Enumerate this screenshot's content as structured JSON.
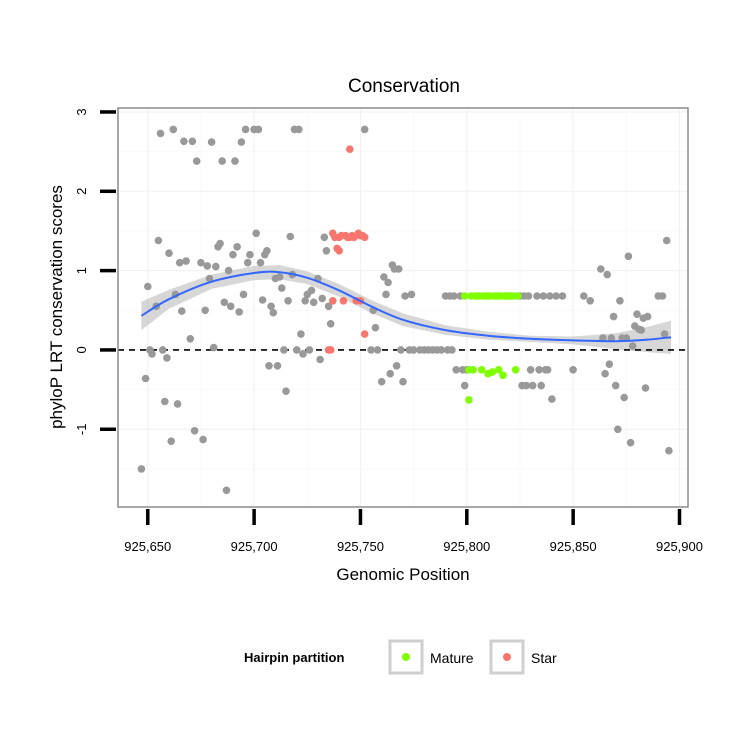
{
  "chart_data": {
    "type": "scatter",
    "title": "Conservation",
    "xlabel": "Genomic Position",
    "ylabel": "phyloP LRT conservation scores",
    "xlim": [
      925636,
      925904
    ],
    "ylim": [
      -1.98,
      3.05
    ],
    "x_ticks": [
      925650,
      925700,
      925750,
      925800,
      925850,
      925900
    ],
    "x_tick_labels": [
      "925,650",
      "925,700",
      "925,750",
      "925,800",
      "925,850",
      "925,900"
    ],
    "y_ticks": [
      -1,
      0,
      1,
      2,
      3
    ],
    "y_tick_labels": [
      "-1",
      "0",
      "1",
      "2",
      "3"
    ],
    "reference_line": {
      "y": 0,
      "style": "dashed"
    },
    "legend": {
      "title": "Hairpin partition",
      "position": "bottom",
      "entries": [
        {
          "label": "Mature",
          "color": "#7fff00"
        },
        {
          "label": "Star",
          "color": "#f8766d"
        }
      ]
    },
    "colors": {
      "other": "#999999",
      "Mature": "#7fff00",
      "Star": "#f8766d",
      "smooth": "#3366ff",
      "band": "#bdbdbd"
    },
    "smooth": {
      "x": [
        925647,
        925660,
        925680,
        925700,
        925712,
        925725,
        925740,
        925755,
        925770,
        925790,
        925810,
        925830,
        925850,
        925870,
        925885,
        925896
      ],
      "y": [
        0.43,
        0.64,
        0.86,
        0.97,
        0.98,
        0.91,
        0.75,
        0.55,
        0.38,
        0.25,
        0.18,
        0.14,
        0.12,
        0.11,
        0.13,
        0.16
      ],
      "lower": [
        0.25,
        0.52,
        0.77,
        0.88,
        0.89,
        0.83,
        0.67,
        0.47,
        0.3,
        0.19,
        0.13,
        0.1,
        0.07,
        0.01,
        -0.03,
        -0.05
      ],
      "upper": [
        0.61,
        0.76,
        0.95,
        1.06,
        1.07,
        0.99,
        0.83,
        0.63,
        0.46,
        0.31,
        0.23,
        0.18,
        0.17,
        0.21,
        0.29,
        0.37
      ]
    },
    "series": [
      {
        "name": "other",
        "points": [
          [
            925647,
            -1.5
          ],
          [
            925649,
            -0.36
          ],
          [
            925650,
            0.8
          ],
          [
            925651,
            0.0
          ],
          [
            925652,
            -0.05
          ],
          [
            925654,
            0.55
          ],
          [
            925655,
            1.38
          ],
          [
            925656,
            2.73
          ],
          [
            925657,
            0.0
          ],
          [
            925658,
            -0.65
          ],
          [
            925659,
            -0.1
          ],
          [
            925660,
            1.22
          ],
          [
            925661,
            -1.15
          ],
          [
            925662,
            2.78
          ],
          [
            925663,
            0.7
          ],
          [
            925664,
            -0.68
          ],
          [
            925665,
            1.1
          ],
          [
            925666,
            0.49
          ],
          [
            925667,
            2.63
          ],
          [
            925668,
            1.12
          ],
          [
            925670,
            0.14
          ],
          [
            925671,
            2.63
          ],
          [
            925672,
            -1.02
          ],
          [
            925673,
            2.38
          ],
          [
            925675,
            1.1
          ],
          [
            925676,
            -1.13
          ],
          [
            925677,
            0.5
          ],
          [
            925678,
            1.06
          ],
          [
            925679,
            0.9
          ],
          [
            925680,
            2.62
          ],
          [
            925681,
            0.03
          ],
          [
            925682,
            1.05
          ],
          [
            925683,
            1.3
          ],
          [
            925684,
            1.34
          ],
          [
            925685,
            2.38
          ],
          [
            925686,
            0.6
          ],
          [
            925687,
            -1.77
          ],
          [
            925688,
            1.0
          ],
          [
            925689,
            0.55
          ],
          [
            925690,
            1.2
          ],
          [
            925691,
            2.38
          ],
          [
            925692,
            1.3
          ],
          [
            925693,
            0.48
          ],
          [
            925694,
            2.62
          ],
          [
            925695,
            0.7
          ],
          [
            925696,
            2.78
          ],
          [
            925697,
            1.1
          ],
          [
            925698,
            1.2
          ],
          [
            925700,
            2.78
          ],
          [
            925701,
            1.47
          ],
          [
            925702,
            2.78
          ],
          [
            925703,
            1.1
          ],
          [
            925704,
            0.63
          ],
          [
            925705,
            1.2
          ],
          [
            925706,
            1.25
          ],
          [
            925707,
            -0.2
          ],
          [
            925708,
            0.55
          ],
          [
            925709,
            0.47
          ],
          [
            925710,
            0.9
          ],
          [
            925711,
            -0.2
          ],
          [
            925712,
            0.92
          ],
          [
            925713,
            0.78
          ],
          [
            925714,
            0.0
          ],
          [
            925715,
            -0.52
          ],
          [
            925716,
            0.62
          ],
          [
            925717,
            1.43
          ],
          [
            925718,
            0.95
          ],
          [
            925719,
            2.78
          ],
          [
            925720,
            0.0
          ],
          [
            925721,
            2.78
          ],
          [
            925722,
            0.2
          ],
          [
            925723,
            -0.05
          ],
          [
            925724,
            0.62
          ],
          [
            925725,
            0.7
          ],
          [
            925726,
            0.0
          ],
          [
            925727,
            0.75
          ],
          [
            925728,
            0.6
          ],
          [
            925730,
            0.9
          ],
          [
            925731,
            -0.12
          ],
          [
            925732,
            0.65
          ],
          [
            925733,
            1.42
          ],
          [
            925734,
            1.25
          ],
          [
            925735,
            0.55
          ],
          [
            925736,
            0.33
          ],
          [
            925752,
            2.78
          ],
          [
            925755,
            0.0
          ],
          [
            925756,
            0.5
          ],
          [
            925757,
            0.28
          ],
          [
            925758,
            0.0
          ],
          [
            925760,
            -0.4
          ],
          [
            925761,
            0.92
          ],
          [
            925762,
            0.7
          ],
          [
            925763,
            0.85
          ],
          [
            925764,
            -0.3
          ],
          [
            925765,
            1.07
          ],
          [
            925766,
            1.02
          ],
          [
            925767,
            -0.2
          ],
          [
            925768,
            1.02
          ],
          [
            925769,
            0.0
          ],
          [
            925770,
            -0.4
          ],
          [
            925771,
            0.68
          ],
          [
            925773,
            0.0
          ],
          [
            925774,
            0.7
          ],
          [
            925775,
            0.0
          ],
          [
            925778,
            0.0
          ],
          [
            925780,
            0.0
          ],
          [
            925782,
            0.0
          ],
          [
            925784,
            0.0
          ],
          [
            925786,
            0.0
          ],
          [
            925788,
            0.0
          ],
          [
            925790,
            0.68
          ],
          [
            925791,
            0.0
          ],
          [
            925792,
            0.68
          ],
          [
            925793,
            0.0
          ],
          [
            925794,
            0.68
          ],
          [
            925795,
            -0.25
          ],
          [
            925797,
            0.68
          ],
          [
            925798,
            -0.25
          ],
          [
            925799,
            -0.45
          ],
          [
            925800,
            -0.25
          ],
          [
            925825,
            0.68
          ],
          [
            925826,
            -0.45
          ],
          [
            925827,
            0.68
          ],
          [
            925828,
            -0.45
          ],
          [
            925829,
            0.68
          ],
          [
            925830,
            -0.25
          ],
          [
            925831,
            -0.45
          ],
          [
            925833,
            0.68
          ],
          [
            925834,
            -0.25
          ],
          [
            925835,
            -0.45
          ],
          [
            925836,
            0.68
          ],
          [
            925837,
            -0.25
          ],
          [
            925838,
            -0.25
          ],
          [
            925839,
            0.68
          ],
          [
            925840,
            -0.62
          ],
          [
            925842,
            0.68
          ],
          [
            925845,
            0.68
          ],
          [
            925850,
            -0.25
          ],
          [
            925855,
            0.68
          ],
          [
            925858,
            0.62
          ],
          [
            925863,
            1.02
          ],
          [
            925864,
            0.15
          ],
          [
            925865,
            -0.3
          ],
          [
            925866,
            0.95
          ],
          [
            925867,
            -0.18
          ],
          [
            925868,
            0.15
          ],
          [
            925869,
            0.42
          ],
          [
            925870,
            -0.45
          ],
          [
            925871,
            -1.0
          ],
          [
            925872,
            0.62
          ],
          [
            925873,
            0.15
          ],
          [
            925874,
            -0.6
          ],
          [
            925875,
            0.15
          ],
          [
            925876,
            1.18
          ],
          [
            925877,
            -1.17
          ],
          [
            925878,
            0.05
          ],
          [
            925879,
            0.3
          ],
          [
            925880,
            0.45
          ],
          [
            925881,
            0.26
          ],
          [
            925882,
            0.25
          ],
          [
            925883,
            0.4
          ],
          [
            925884,
            -0.48
          ],
          [
            925885,
            0.42
          ],
          [
            925890,
            0.68
          ],
          [
            925892,
            0.68
          ],
          [
            925893,
            0.2
          ],
          [
            925894,
            1.38
          ],
          [
            925895,
            -1.27
          ]
        ]
      },
      {
        "name": "Mature",
        "points": [
          [
            925799,
            0.68
          ],
          [
            925801,
            -0.25
          ],
          [
            925801,
            -0.63
          ],
          [
            925802,
            0.68
          ],
          [
            925803,
            -0.25
          ],
          [
            925804,
            0.68
          ],
          [
            925805,
            0.68
          ],
          [
            925806,
            0.68
          ],
          [
            925807,
            -0.25
          ],
          [
            925808,
            0.68
          ],
          [
            925809,
            0.68
          ],
          [
            925810,
            -0.3
          ],
          [
            925810,
            0.68
          ],
          [
            925811,
            0.68
          ],
          [
            925812,
            -0.28
          ],
          [
            925813,
            0.68
          ],
          [
            925814,
            0.68
          ],
          [
            925815,
            -0.25
          ],
          [
            925815,
            0.68
          ],
          [
            925816,
            0.68
          ],
          [
            925817,
            -0.32
          ],
          [
            925818,
            0.68
          ],
          [
            925819,
            0.68
          ],
          [
            925820,
            0.68
          ],
          [
            925821,
            0.68
          ],
          [
            925822,
            0.68
          ],
          [
            925823,
            -0.25
          ],
          [
            925824,
            0.68
          ]
        ]
      },
      {
        "name": "Star",
        "points": [
          [
            925735,
            0.0
          ],
          [
            925736,
            0.0
          ],
          [
            925737,
            0.62
          ],
          [
            925737,
            1.47
          ],
          [
            925738,
            1.42
          ],
          [
            925739,
            1.28
          ],
          [
            925740,
            1.42
          ],
          [
            925740,
            1.25
          ],
          [
            925741,
            1.44
          ],
          [
            925742,
            0.62
          ],
          [
            925743,
            1.44
          ],
          [
            925744,
            1.42
          ],
          [
            925745,
            1.42
          ],
          [
            925745,
            2.53
          ],
          [
            925746,
            1.44
          ],
          [
            925747,
            1.42
          ],
          [
            925748,
            0.62
          ],
          [
            925749,
            1.47
          ],
          [
            925750,
            0.62
          ],
          [
            925750,
            1.44
          ],
          [
            925751,
            1.44
          ],
          [
            925752,
            0.2
          ],
          [
            925752,
            1.42
          ]
        ]
      }
    ]
  }
}
